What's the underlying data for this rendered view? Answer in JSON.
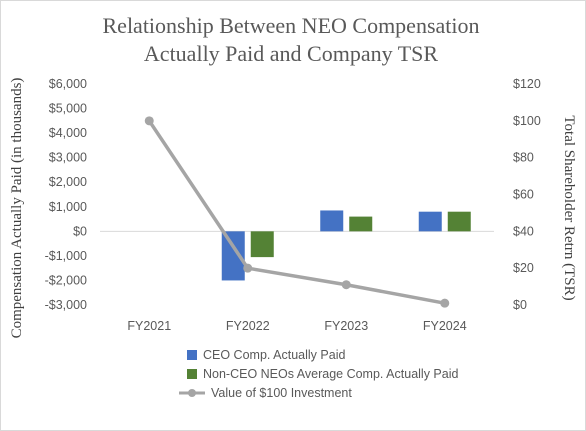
{
  "chart_data": {
    "type": "bar",
    "title_lines": [
      "Relationship Between NEO Compensation",
      "Actually Paid and Company TSR"
    ],
    "categories": [
      "FY2021",
      "FY2022",
      "FY2023",
      "FY2024"
    ],
    "ylabel": "Compensation Actually Paid (in thousands)",
    "y2label": "Total Shareholder Retrn (TSR)",
    "ylim": [
      -3000,
      6000
    ],
    "y2lim": [
      0,
      120
    ],
    "y_ticks": [
      -3000,
      -2000,
      -1000,
      0,
      1000,
      2000,
      3000,
      4000,
      5000,
      6000
    ],
    "y_tick_labels": [
      "-$3,000",
      "-$2,000",
      "-$1,000",
      "$0",
      "$1,000",
      "$2,000",
      "$3,000",
      "$4,000",
      "$5,000",
      "$6,000"
    ],
    "y2_ticks": [
      0,
      20,
      40,
      60,
      80,
      100,
      120
    ],
    "y2_tick_labels": [
      "$0",
      "$20",
      "$40",
      "$60",
      "$80",
      "$100",
      "$120"
    ],
    "grid": false,
    "legend_position": "bottom",
    "series": [
      {
        "name": "CEO Comp. Actually Paid",
        "kind": "bar",
        "axis": "left",
        "color": "#4472C4",
        "values": [
          0,
          -2000,
          850,
          800
        ]
      },
      {
        "name": "Non-CEO NEOs Average Comp. Actually Paid",
        "kind": "bar",
        "axis": "left",
        "color": "#548235",
        "values": [
          0,
          -1050,
          600,
          800
        ]
      },
      {
        "name": "Value of $100 Investment",
        "kind": "line",
        "axis": "right",
        "color": "#A5A5A5",
        "values": [
          100,
          20,
          11,
          1
        ]
      }
    ]
  }
}
